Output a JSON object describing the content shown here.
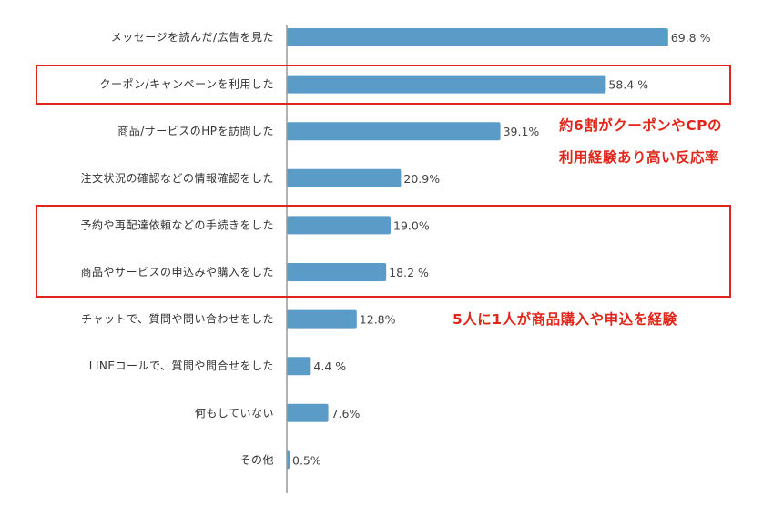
{
  "chart_data": {
    "type": "bar",
    "orientation": "horizontal",
    "unit": "%",
    "bar_color": "#5b9bc8",
    "categories": [
      "メッセージを読んだ/広告を見た",
      "クーポン/キャンペーンを利用した",
      "商品/サービスのHPを訪問した",
      "注文状況の確認などの情報確認をした",
      "予約や再配達依頼などの手続きをした",
      "商品やサービスの申込みや購入をした",
      "チャットで、質問や問い合わせをした",
      "LINEコールで、質問や問合せをした",
      "何もしていない",
      "その他"
    ],
    "values": [
      69.8,
      58.4,
      39.1,
      20.9,
      19.0,
      18.2,
      12.8,
      4.4,
      7.6,
      0.5
    ],
    "value_labels": [
      "69.8 %",
      "58.4 %",
      "39.1%",
      "20.9%",
      "19.0%",
      "18.2 %",
      "12.8%",
      "4.4 %",
      "7.6%",
      "0.5%"
    ],
    "xlim": [
      0,
      72
    ],
    "grid": false
  },
  "annotations": {
    "color": "#e0261b",
    "coupon_note_line1": "約6割がクーポンやCPの",
    "coupon_note_line2": "利用経験あり高い反応率",
    "purchase_note": "5人に1人が商品購入や申込を経験"
  }
}
